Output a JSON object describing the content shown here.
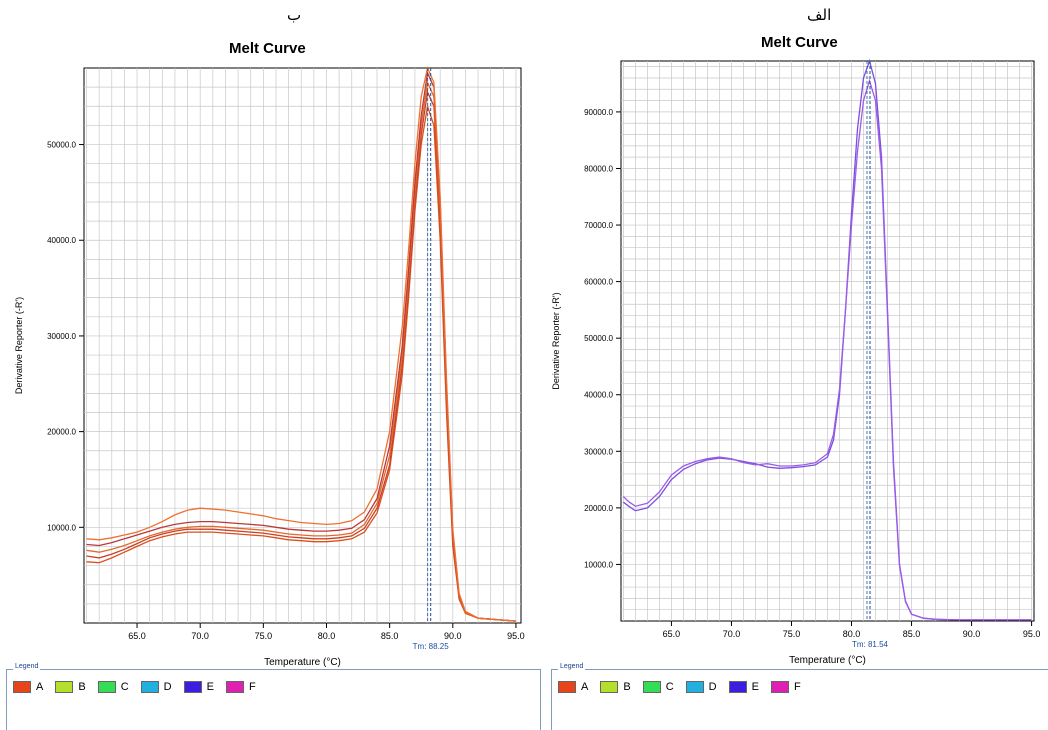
{
  "legend": {
    "caption": "Legend",
    "items": [
      {
        "label": "A",
        "color": "#e8441a"
      },
      {
        "label": "B",
        "color": "#b4e02c"
      },
      {
        "label": "C",
        "color": "#33dd55"
      },
      {
        "label": "D",
        "color": "#22b0e0"
      },
      {
        "label": "E",
        "color": "#3b1fe0"
      },
      {
        "label": "F",
        "color": "#e020b0"
      }
    ]
  },
  "panels": {
    "left": {
      "letter": "ب"
    },
    "right": {
      "letter": "الف"
    }
  },
  "chart_data": [
    {
      "type": "line",
      "title": "Melt Curve",
      "xlabel": "Temperature (°C)",
      "ylabel": "Derivative Reporter (-R')",
      "xlim": [
        60.8,
        95.4
      ],
      "ylim": [
        0,
        58000
      ],
      "xticks": [
        65.0,
        70.0,
        75.0,
        80.0,
        85.0,
        90.0,
        95.0
      ],
      "xtick_labels": [
        "65.0",
        "70.0",
        "75.0",
        "80.0",
        "85.0",
        "90.0",
        "95.0"
      ],
      "yticks": [
        10000,
        20000,
        30000,
        40000,
        50000
      ],
      "ytick_labels": [
        "10000.0",
        "20000.0",
        "30000.0",
        "40000.0",
        "50000.0"
      ],
      "grid": true,
      "tm_value": 88.25,
      "tm_label": "Tm: 88.25",
      "series_color": "#e8541a",
      "series_alt_colors": [
        "#d9501e",
        "#c8402a",
        "#e26a2c",
        "#b83a3a",
        "#f07030",
        "#d04828"
      ],
      "series": [
        {
          "x": [
            61,
            62,
            63,
            64,
            65,
            66,
            67,
            68,
            69,
            70,
            71,
            72,
            73,
            74,
            75,
            76,
            77,
            78,
            79,
            80,
            81,
            82,
            83,
            84,
            85,
            86,
            86.5,
            87,
            87.5,
            88,
            88.5,
            89,
            89.5,
            90,
            90.5,
            91,
            92,
            93,
            94,
            95
          ],
          "values": [
            6400,
            6300,
            6800,
            7400,
            8000,
            8600,
            9000,
            9300,
            9500,
            9500,
            9500,
            9400,
            9300,
            9200,
            9100,
            8900,
            8700,
            8600,
            8500,
            8500,
            8600,
            8800,
            9500,
            11500,
            16000,
            26000,
            34000,
            43000,
            50000,
            54000,
            52000,
            40000,
            22000,
            8000,
            2500,
            1000,
            500,
            400,
            300,
            200
          ]
        },
        {
          "x": [
            61,
            62,
            63,
            64,
            65,
            66,
            67,
            68,
            69,
            70,
            71,
            72,
            73,
            74,
            75,
            76,
            77,
            78,
            79,
            80,
            81,
            82,
            83,
            84,
            85,
            86,
            86.5,
            87,
            87.5,
            88,
            88.5,
            89,
            89.5,
            90,
            90.5,
            91,
            92,
            93,
            94,
            95
          ],
          "values": [
            7000,
            6800,
            7200,
            7700,
            8300,
            8900,
            9300,
            9600,
            9800,
            9800,
            9800,
            9700,
            9600,
            9500,
            9400,
            9200,
            9000,
            8900,
            8800,
            8800,
            8900,
            9100,
            9900,
            12000,
            16500,
            27000,
            35000,
            44000,
            51000,
            55500,
            54000,
            42000,
            23000,
            8500,
            2700,
            1100,
            500,
            400,
            300,
            200
          ]
        },
        {
          "x": [
            61,
            62,
            63,
            64,
            65,
            66,
            67,
            68,
            69,
            70,
            71,
            72,
            73,
            74,
            75,
            76,
            77,
            78,
            79,
            80,
            81,
            82,
            83,
            84,
            85,
            86,
            86.5,
            87,
            87.5,
            88,
            88.5,
            89,
            89.5,
            90,
            90.5,
            91,
            92,
            93,
            94,
            95
          ],
          "values": [
            7600,
            7400,
            7700,
            8100,
            8600,
            9100,
            9500,
            9800,
            10000,
            10100,
            10100,
            10000,
            9900,
            9800,
            9700,
            9500,
            9300,
            9200,
            9100,
            9100,
            9200,
            9400,
            10300,
            12500,
            17500,
            28000,
            36000,
            45000,
            52000,
            56500,
            55000,
            43000,
            24000,
            9000,
            2800,
            1100,
            500,
            400,
            300,
            200
          ]
        },
        {
          "x": [
            61,
            62,
            63,
            64,
            65,
            66,
            67,
            68,
            69,
            70,
            71,
            72,
            73,
            74,
            75,
            76,
            77,
            78,
            79,
            80,
            81,
            82,
            83,
            84,
            85,
            86,
            86.5,
            87,
            87.5,
            88,
            88.5,
            89,
            89.5,
            90,
            90.5,
            91,
            92,
            93,
            94,
            95
          ],
          "values": [
            8200,
            8100,
            8400,
            8800,
            9200,
            9600,
            10000,
            10300,
            10500,
            10600,
            10600,
            10500,
            10400,
            10300,
            10200,
            10000,
            9800,
            9700,
            9600,
            9600,
            9700,
            9900,
            10800,
            13000,
            18500,
            29000,
            37000,
            46000,
            53000,
            57500,
            56000,
            44000,
            25000,
            9500,
            3000,
            1200,
            500,
            400,
            300,
            200
          ]
        },
        {
          "x": [
            61,
            62,
            63,
            64,
            65,
            66,
            67,
            68,
            69,
            70,
            71,
            72,
            73,
            74,
            75,
            76,
            77,
            78,
            79,
            80,
            81,
            82,
            83,
            84,
            85,
            86,
            86.5,
            87,
            87.5,
            88,
            88.5,
            89,
            89.5,
            90,
            90.5,
            91,
            92,
            93,
            94,
            95
          ],
          "values": [
            8800,
            8700,
            8900,
            9200,
            9500,
            10000,
            10600,
            11300,
            11800,
            12000,
            11900,
            11800,
            11600,
            11400,
            11200,
            10900,
            10700,
            10500,
            10400,
            10300,
            10400,
            10700,
            11600,
            14000,
            20000,
            31000,
            39000,
            48000,
            55000,
            58000,
            56500,
            44500,
            25500,
            9800,
            3100,
            1200,
            500,
            400,
            300,
            200
          ]
        }
      ]
    },
    {
      "type": "line",
      "title": "Melt Curve",
      "xlabel": "Temperature (°C)",
      "ylabel": "Derivative Reporter (-R')",
      "xlim": [
        60.8,
        95.2
      ],
      "ylim": [
        0,
        99000
      ],
      "xticks": [
        65.0,
        70.0,
        75.0,
        80.0,
        85.0,
        90.0,
        95.0
      ],
      "xtick_labels": [
        "65.0",
        "70.0",
        "75.0",
        "80.0",
        "85.0",
        "90.0",
        "95.0"
      ],
      "yticks": [
        10000,
        20000,
        30000,
        40000,
        50000,
        60000,
        70000,
        80000,
        90000
      ],
      "ytick_labels": [
        "10000.0",
        "20000.0",
        "30000.0",
        "40000.0",
        "50000.0",
        "60000.0",
        "70000.0",
        "80000.0",
        "90000.0"
      ],
      "grid": true,
      "tm_value": 81.54,
      "tm_label": "Tm: 81.54",
      "series_color": "#7a4fe0",
      "series_alt_colors": [
        "#7a4fe0",
        "#9d5ce8"
      ],
      "series": [
        {
          "x": [
            61,
            61.5,
            62,
            63,
            64,
            65,
            66,
            67,
            68,
            69,
            70,
            71,
            72,
            73,
            74,
            75,
            76,
            77,
            78,
            78.5,
            79,
            79.5,
            80,
            80.5,
            81,
            81.5,
            82,
            82.5,
            83,
            83.5,
            84,
            84.5,
            85,
            86,
            87,
            88,
            89,
            90,
            91,
            92,
            93,
            94,
            95
          ],
          "values": [
            21000,
            20200,
            19500,
            20000,
            22000,
            25000,
            26800,
            27800,
            28500,
            28800,
            28600,
            28200,
            27800,
            27200,
            27000,
            27100,
            27300,
            27600,
            29000,
            32000,
            40000,
            55000,
            72000,
            87000,
            96000,
            99000,
            95000,
            82000,
            55000,
            28000,
            10000,
            3500,
            1200,
            500,
            300,
            250,
            200,
            200,
            200,
            200,
            200,
            200,
            200
          ]
        },
        {
          "x": [
            61,
            61.5,
            62,
            63,
            64,
            65,
            66,
            67,
            68,
            69,
            70,
            71,
            72,
            73,
            74,
            75,
            76,
            77,
            78,
            78.5,
            79,
            79.5,
            80,
            80.5,
            81,
            81.5,
            82,
            82.5,
            83,
            83.5,
            84,
            84.5,
            85,
            86,
            87,
            88,
            89,
            90,
            91,
            92,
            93,
            94,
            95
          ],
          "values": [
            22000,
            21000,
            20300,
            20800,
            22800,
            25800,
            27400,
            28200,
            28700,
            29000,
            28700,
            28000,
            27600,
            27800,
            27400,
            27400,
            27600,
            28000,
            29600,
            33000,
            41000,
            55000,
            70000,
            83000,
            92000,
            95500,
            92000,
            80000,
            54000,
            27000,
            9800,
            3400,
            1200,
            500,
            300,
            250,
            200,
            200,
            200,
            200,
            200,
            200,
            200
          ]
        }
      ]
    }
  ]
}
